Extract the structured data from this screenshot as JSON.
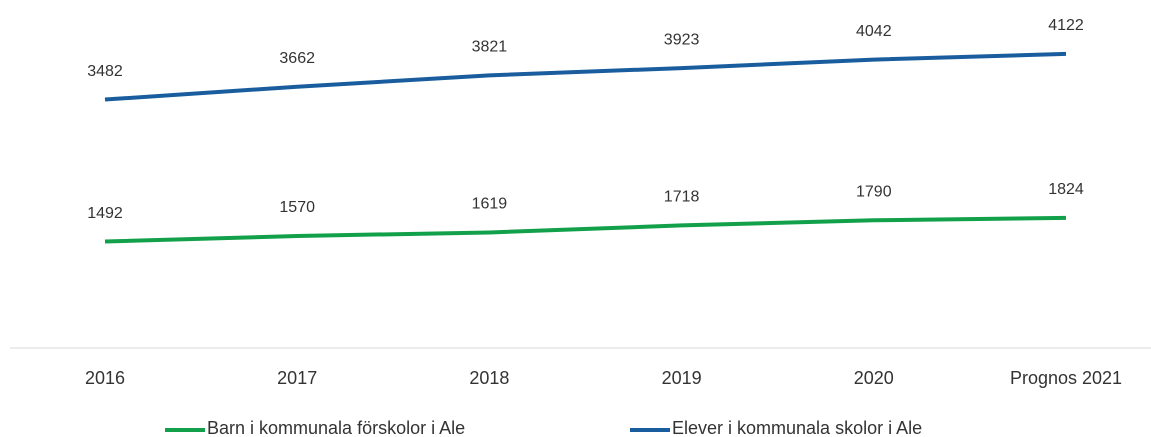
{
  "chart_data": {
    "type": "line",
    "categories": [
      "2016",
      "2017",
      "2018",
      "2019",
      "2020",
      "Prognos 2021"
    ],
    "series": [
      {
        "name": "Barn i kommunala förskolor i Ale",
        "color": "#13a04a",
        "values": [
          1492,
          1570,
          1619,
          1718,
          1790,
          1824
        ]
      },
      {
        "name": "Elever i kommunala skolor i Ale",
        "color": "#1a5d9e",
        "values": [
          3482,
          3662,
          3821,
          3923,
          4042,
          4122
        ]
      }
    ],
    "ylim": [
      0,
      4800
    ],
    "legend": "bottom",
    "data_labels": true
  }
}
